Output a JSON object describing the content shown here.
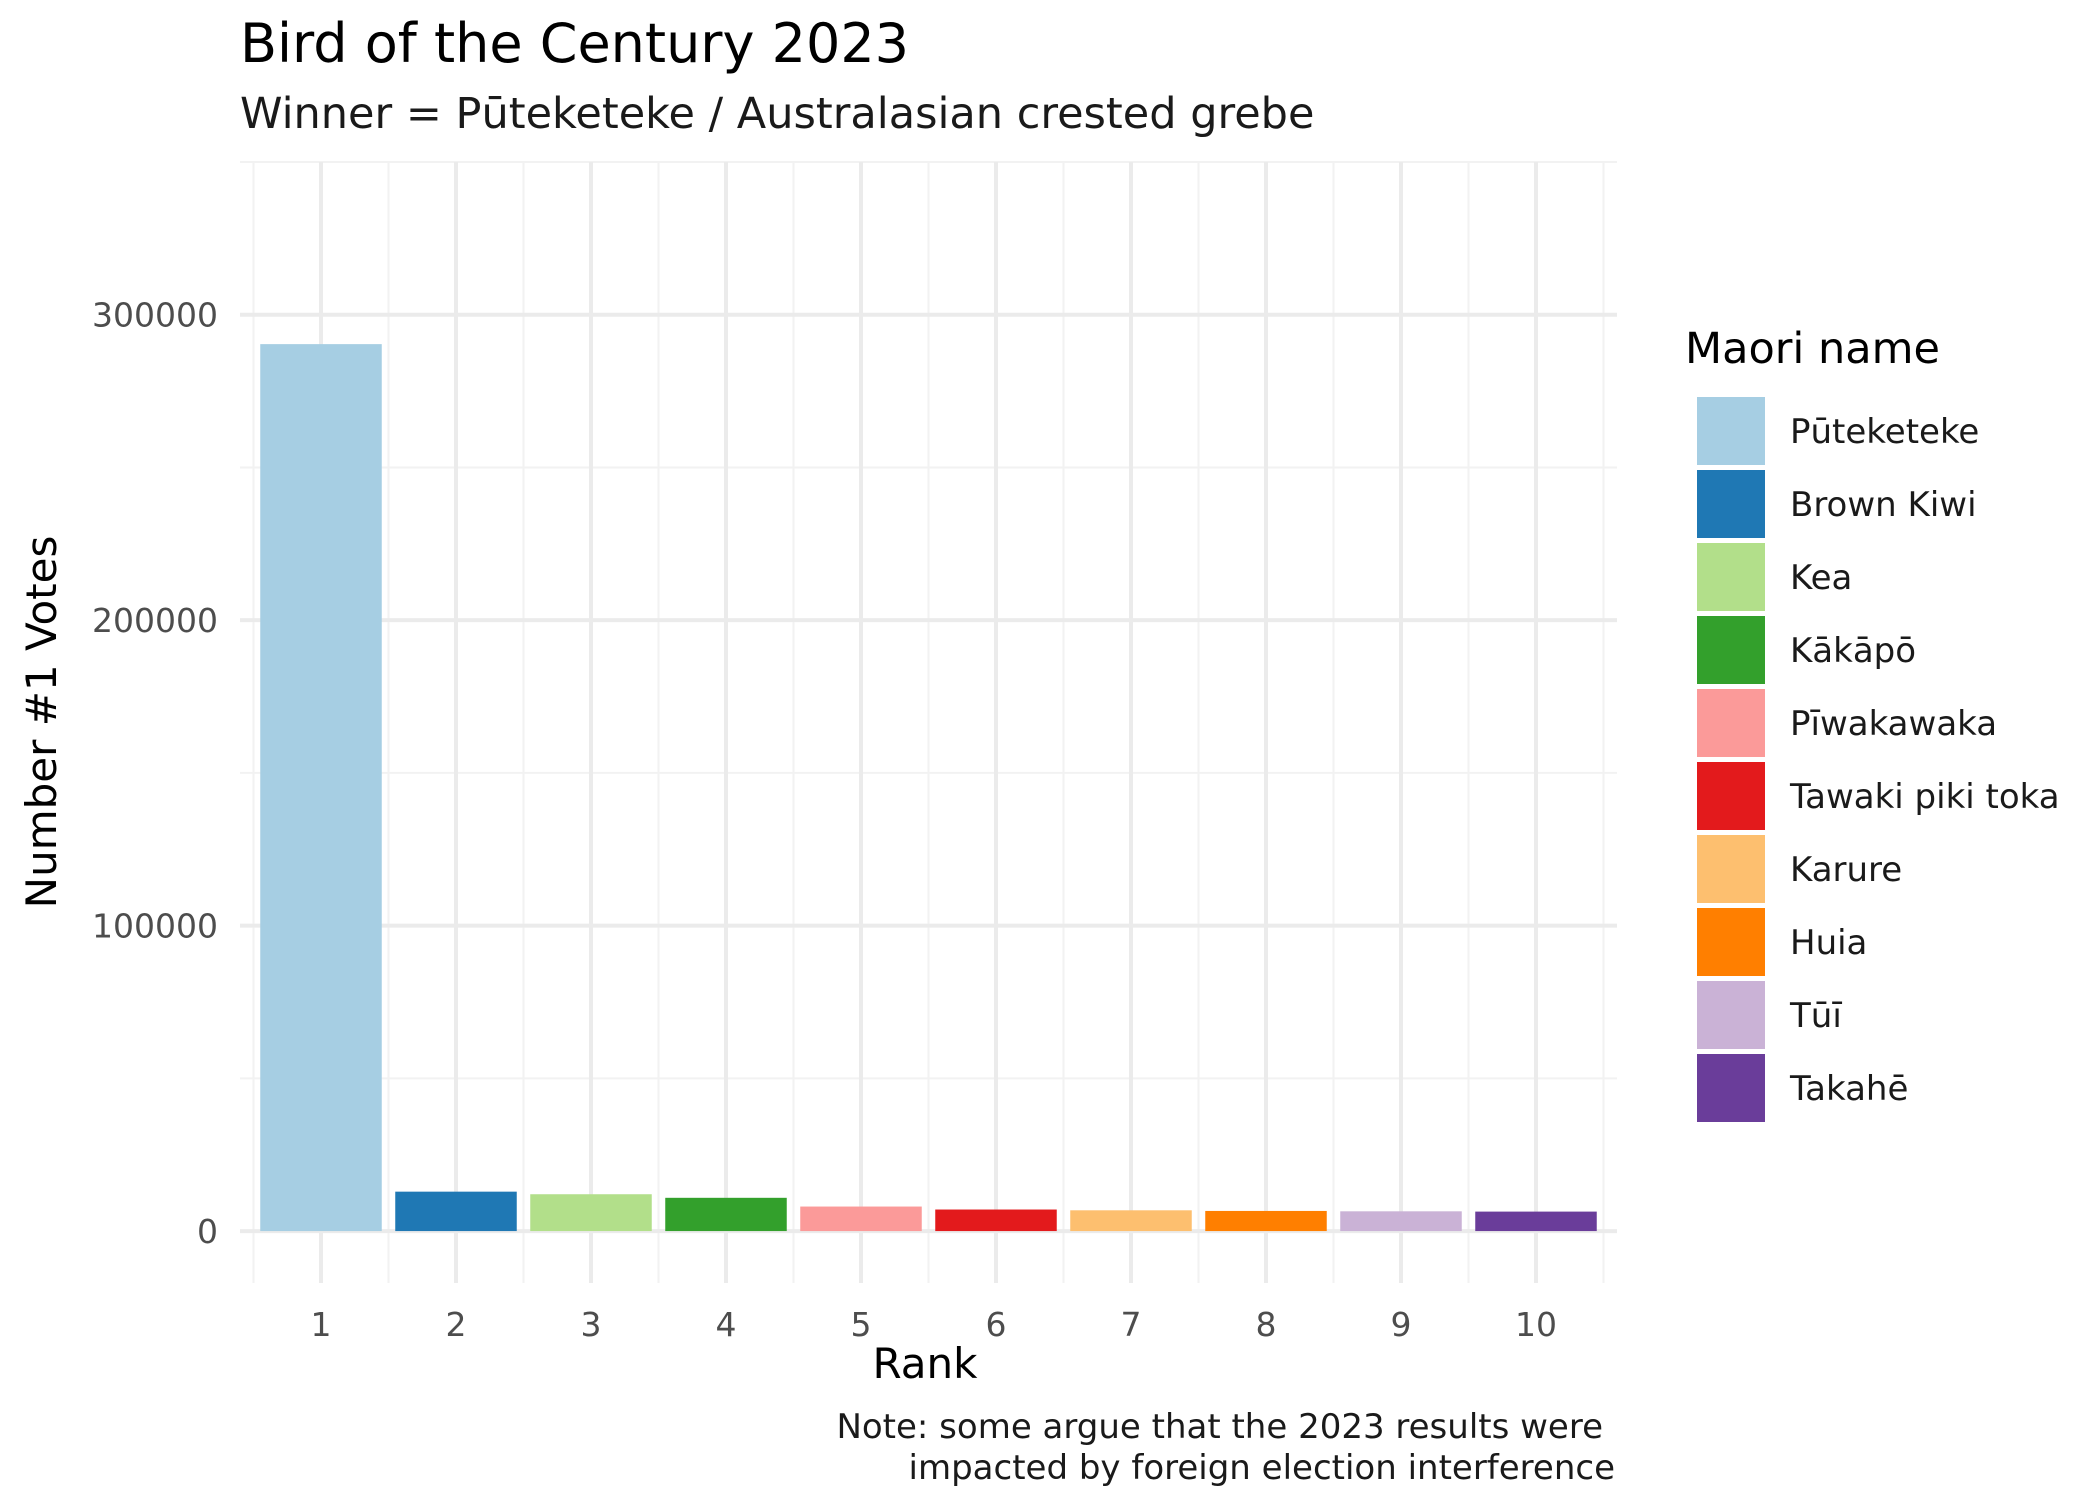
{
  "chart_data": {
    "type": "bar",
    "title": "Bird of the Century 2023",
    "subtitle": "Winner = Pūteketeke / Australasian crested grebe",
    "xlabel": "Rank",
    "ylabel": "Number #1 Votes",
    "categories": [
      "1",
      "2",
      "3",
      "4",
      "5",
      "6",
      "7",
      "8",
      "9",
      "10"
    ],
    "values": [
      290374,
      12904,
      12060,
      10889,
      8030,
      7053,
      6801,
      6590,
      6470,
      6375
    ],
    "names": [
      "Pūteketeke",
      "Brown Kiwi",
      "Kea",
      "Kākāpō",
      "Pīwakawaka",
      "Tawaki piki toka",
      "Karure",
      "Huia",
      "Tūī",
      "Takahē"
    ],
    "colors": [
      "#a6cee3",
      "#1f78b4",
      "#b2df8a",
      "#33a02c",
      "#fb9a99",
      "#e31a1c",
      "#fdbf6f",
      "#ff7f00",
      "#cab2d6",
      "#6a3d9a"
    ],
    "yticks": [
      "0",
      "100000",
      "200000",
      "300000"
    ],
    "ylim": [
      -17000,
      350000
    ],
    "legend_title": "Maori name",
    "legend_position": "right",
    "grid": true,
    "caption": [
      "Note: some argue that the 2023 results were",
      "impacted by foreign election interference"
    ]
  }
}
